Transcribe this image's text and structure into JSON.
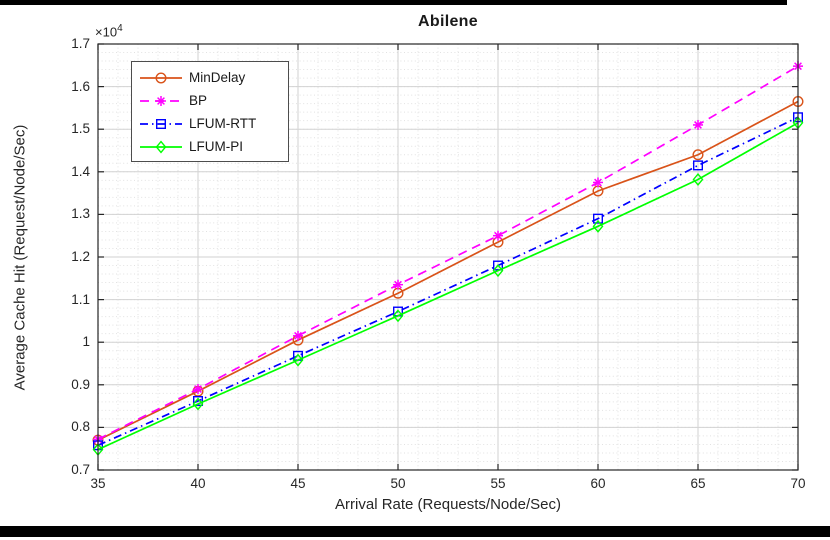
{
  "window": {
    "top_bar": "window-edge",
    "bottom_bar": "window-edge"
  },
  "chart_data": {
    "type": "line",
    "title": "Abilene",
    "xlabel": "Arrival Rate (Requests/Node/Sec)",
    "ylabel": "Average Cache Hit (Request/Node/Sec)",
    "y_multiplier": "1e4",
    "y_multiplier_display": {
      "base": "×10",
      "exp": "4"
    },
    "xlim": [
      35,
      70
    ],
    "ylim": [
      0.7,
      1.7
    ],
    "grid": true,
    "minor_grid": true,
    "legend_position": "top-left",
    "x": [
      35,
      40,
      45,
      50,
      55,
      60,
      65,
      70
    ],
    "xticks": {
      "values": [
        35,
        40,
        45,
        50,
        55,
        60,
        65,
        70
      ],
      "labels": [
        "35",
        "40",
        "45",
        "50",
        "55",
        "60",
        "65",
        "70"
      ]
    },
    "yticks": {
      "values": [
        0.7,
        0.8,
        0.9,
        1.0,
        1.1,
        1.2,
        1.3,
        1.4,
        1.5,
        1.6,
        1.7
      ],
      "labels": [
        "0.7",
        "0.8",
        "0.9",
        "1",
        "1.1",
        "1.2",
        "1.3",
        "1.4",
        "1.5",
        "1.6",
        "1.7"
      ]
    },
    "minor_step_x": 1,
    "minor_step_y": 0.02,
    "series": [
      {
        "name": "MinDelay",
        "color": "#D95319",
        "line_style": "solid",
        "marker": "circle",
        "values": [
          0.77,
          0.885,
          1.005,
          1.115,
          1.235,
          1.355,
          1.44,
          1.565
        ]
      },
      {
        "name": "BP",
        "color": "#FF00FF",
        "line_style": "dashed",
        "marker": "asterisk",
        "values": [
          0.772,
          0.89,
          1.015,
          1.135,
          1.25,
          1.375,
          1.51,
          1.648
        ]
      },
      {
        "name": "LFUM-RTT",
        "color": "#0000FF",
        "line_style": "dashdot",
        "marker": "square",
        "values": [
          0.758,
          0.862,
          0.968,
          1.072,
          1.18,
          1.29,
          1.415,
          1.528
        ]
      },
      {
        "name": "LFUM-PI",
        "color": "#00FF00",
        "line_style": "solid",
        "marker": "diamond",
        "values": [
          0.748,
          0.855,
          0.958,
          1.062,
          1.168,
          1.272,
          1.382,
          1.515
        ]
      }
    ]
  }
}
